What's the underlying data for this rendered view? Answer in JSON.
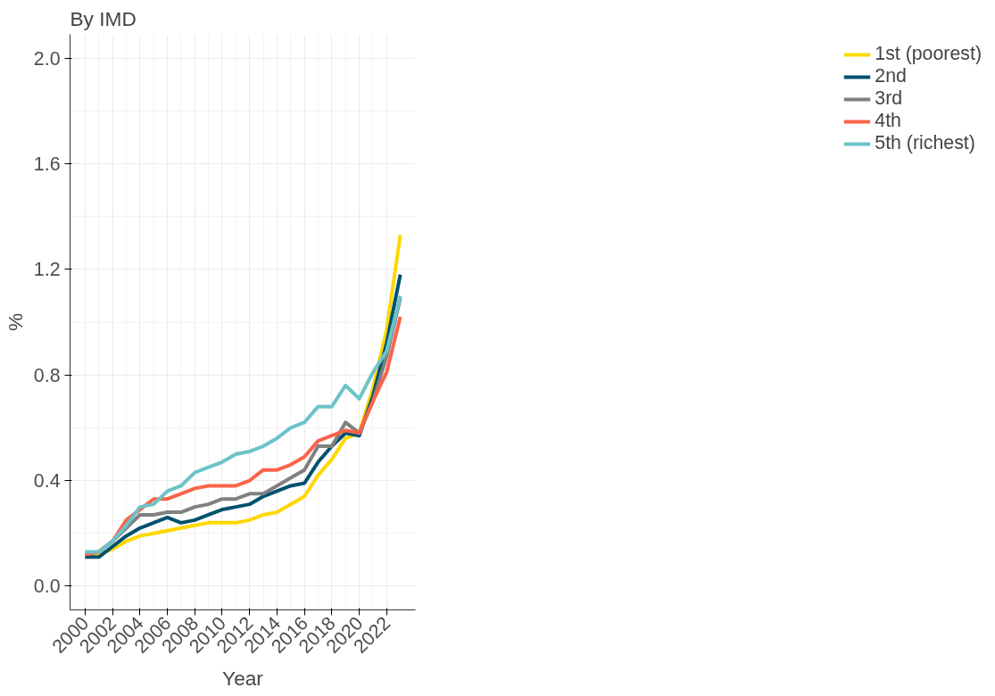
{
  "chart_data": {
    "type": "line",
    "title": "By IMD",
    "xlabel": "Year",
    "ylabel": "%",
    "x": [
      2000,
      2001,
      2002,
      2003,
      2004,
      2005,
      2006,
      2007,
      2008,
      2009,
      2010,
      2011,
      2012,
      2013,
      2014,
      2015,
      2016,
      2017,
      2018,
      2019,
      2020,
      2021,
      2022,
      2023
    ],
    "series": [
      {
        "name": "1st (poorest)",
        "color": "#ffd700",
        "values": [
          0.11,
          0.12,
          0.14,
          0.17,
          0.19,
          0.2,
          0.21,
          0.22,
          0.23,
          0.24,
          0.24,
          0.24,
          0.25,
          0.27,
          0.28,
          0.31,
          0.34,
          0.42,
          0.48,
          0.56,
          0.58,
          0.75,
          0.97,
          1.33
        ]
      },
      {
        "name": "2nd",
        "color": "#00506e",
        "values": [
          0.11,
          0.11,
          0.15,
          0.19,
          0.22,
          0.24,
          0.26,
          0.24,
          0.25,
          0.27,
          0.29,
          0.3,
          0.31,
          0.34,
          0.36,
          0.38,
          0.39,
          0.47,
          0.53,
          0.58,
          0.57,
          0.72,
          0.92,
          1.18
        ]
      },
      {
        "name": "3rd",
        "color": "#808080",
        "values": [
          0.12,
          0.13,
          0.17,
          0.22,
          0.27,
          0.27,
          0.28,
          0.28,
          0.3,
          0.31,
          0.33,
          0.33,
          0.35,
          0.35,
          0.38,
          0.41,
          0.44,
          0.53,
          0.53,
          0.62,
          0.58,
          0.7,
          0.87,
          1.09
        ]
      },
      {
        "name": "4th",
        "color": "#fa6449",
        "values": [
          0.12,
          0.13,
          0.17,
          0.25,
          0.29,
          0.33,
          0.33,
          0.35,
          0.37,
          0.38,
          0.38,
          0.38,
          0.4,
          0.44,
          0.44,
          0.46,
          0.49,
          0.55,
          0.57,
          0.59,
          0.58,
          0.7,
          0.81,
          1.02
        ]
      },
      {
        "name": "5th (richest)",
        "color": "#6cc3c8",
        "values": [
          0.13,
          0.13,
          0.17,
          0.23,
          0.3,
          0.31,
          0.36,
          0.38,
          0.43,
          0.45,
          0.47,
          0.5,
          0.51,
          0.53,
          0.56,
          0.6,
          0.62,
          0.68,
          0.68,
          0.76,
          0.71,
          0.81,
          0.89,
          1.1
        ]
      }
    ],
    "xlim": [
      1998.9,
      2024.1
    ],
    "ylim": [
      -0.09,
      2.09
    ],
    "xticks": [
      2000,
      2002,
      2004,
      2006,
      2008,
      2010,
      2012,
      2014,
      2016,
      2018,
      2020,
      2022
    ],
    "yticks": [
      {
        "value": 0,
        "label": "0.0"
      },
      {
        "value": 0.4,
        "label": "0.4"
      },
      {
        "value": 0.8,
        "label": "0.8"
      },
      {
        "value": 1.2,
        "label": "1.2"
      },
      {
        "value": 1.6,
        "label": "1.6"
      },
      {
        "value": 2.0,
        "label": "2.0"
      }
    ],
    "grid": true,
    "legend": "right",
    "marker": "none",
    "line_style": "solid"
  }
}
